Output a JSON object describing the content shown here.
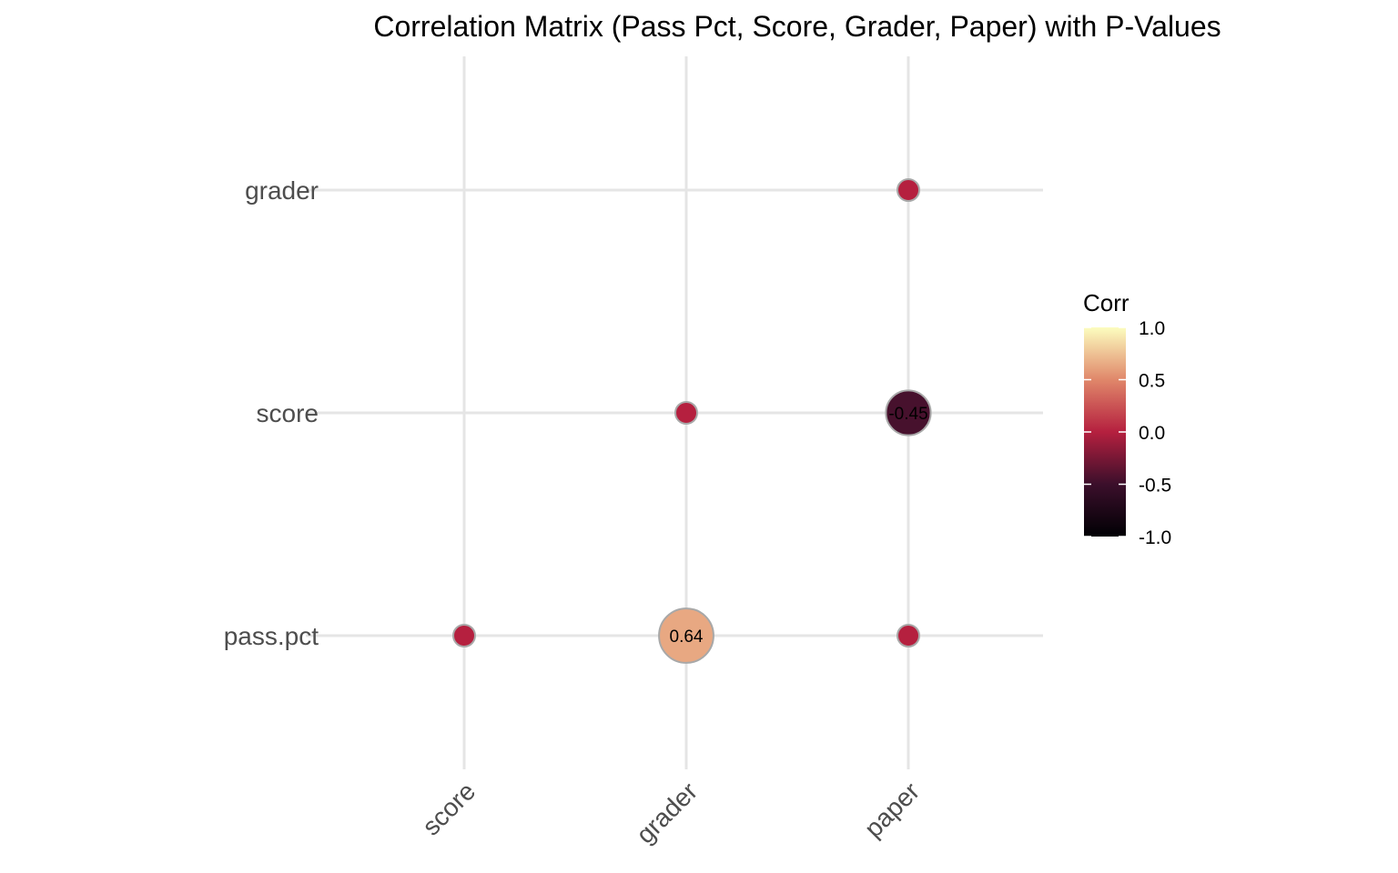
{
  "chart_data": {
    "type": "scatter",
    "title": "Correlation Matrix (Pass Pct, Score, Grader, Paper) with P-Values",
    "xlabel": "",
    "ylabel": "",
    "x_categories": [
      "score",
      "grader",
      "paper"
    ],
    "y_categories": [
      "pass.pct",
      "score",
      "grader"
    ],
    "points": [
      {
        "x": "score",
        "y": "pass.pct",
        "corr": 0.0,
        "label": ""
      },
      {
        "x": "grader",
        "y": "pass.pct",
        "corr": 0.64,
        "label": "0.64"
      },
      {
        "x": "paper",
        "y": "pass.pct",
        "corr": 0.0,
        "label": ""
      },
      {
        "x": "grader",
        "y": "score",
        "corr": 0.0,
        "label": ""
      },
      {
        "x": "paper",
        "y": "score",
        "corr": -0.45,
        "label": "-0.45"
      },
      {
        "x": "paper",
        "y": "grader",
        "corr": 0.0,
        "label": ""
      }
    ],
    "legend": {
      "title": "Corr",
      "position": "right",
      "ticks": [
        "1.0",
        "0.5",
        "0.0",
        "-0.5",
        "-1.0"
      ],
      "tick_values": [
        1.0,
        0.5,
        0.0,
        -0.5,
        -1.0
      ],
      "range": [
        -1,
        1
      ]
    },
    "colorscale": [
      {
        "v": -1.0,
        "color": "#000004"
      },
      {
        "v": -0.5,
        "color": "#3b0f2b"
      },
      {
        "v": 0.0,
        "color": "#b5203f"
      },
      {
        "v": 0.5,
        "color": "#e0876a"
      },
      {
        "v": 1.0,
        "color": "#fcfdbf"
      }
    ],
    "grid": true
  }
}
